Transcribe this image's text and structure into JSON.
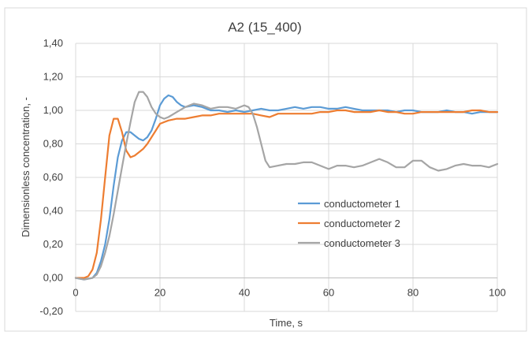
{
  "chart_data": {
    "type": "line",
    "title": "A2 (15_400)",
    "xlabel": "Time, s",
    "ylabel": "Dimensionless concentration, -",
    "xlim": [
      0,
      100
    ],
    "ylim": [
      -0.2,
      1.4
    ],
    "x_ticks": [
      "0",
      "20",
      "40",
      "60",
      "80",
      "100"
    ],
    "y_ticks": [
      "-0,20",
      "0,00",
      "0,20",
      "0,40",
      "0,60",
      "0,80",
      "1,00",
      "1,20",
      "1,40"
    ],
    "grid": true,
    "legend_position": "right-middle",
    "series": [
      {
        "name": "conductometer 1",
        "color": "#5b9bd5",
        "x": [
          0,
          2,
          4,
          5,
          6,
          7,
          8,
          9,
          10,
          11,
          12,
          13,
          14,
          15,
          16,
          17,
          18,
          19,
          20,
          21,
          22,
          23,
          24,
          25,
          26,
          28,
          30,
          32,
          34,
          36,
          38,
          40,
          42,
          44,
          46,
          48,
          50,
          52,
          54,
          56,
          58,
          60,
          62,
          64,
          66,
          68,
          70,
          72,
          74,
          76,
          78,
          80,
          82,
          84,
          86,
          88,
          90,
          92,
          94,
          96,
          98,
          100
        ],
        "y": [
          0.0,
          -0.01,
          0.0,
          0.03,
          0.1,
          0.2,
          0.35,
          0.55,
          0.72,
          0.82,
          0.87,
          0.87,
          0.85,
          0.83,
          0.82,
          0.84,
          0.88,
          0.95,
          1.03,
          1.07,
          1.09,
          1.08,
          1.05,
          1.03,
          1.02,
          1.03,
          1.02,
          1.0,
          1.0,
          0.99,
          1.0,
          0.99,
          1.0,
          1.01,
          1.0,
          1.0,
          1.01,
          1.02,
          1.01,
          1.02,
          1.02,
          1.01,
          1.01,
          1.02,
          1.01,
          1.0,
          1.0,
          1.0,
          1.0,
          0.99,
          1.0,
          1.0,
          0.99,
          0.99,
          0.99,
          1.0,
          0.99,
          0.99,
          0.98,
          0.99,
          0.99,
          0.99
        ]
      },
      {
        "name": "conductometer 2",
        "color": "#ed7d31",
        "x": [
          0,
          2,
          3,
          4,
          5,
          6,
          7,
          8,
          9,
          10,
          11,
          12,
          13,
          14,
          15,
          16,
          17,
          18,
          19,
          20,
          21,
          22,
          24,
          26,
          28,
          30,
          32,
          34,
          36,
          38,
          40,
          42,
          44,
          46,
          48,
          50,
          52,
          54,
          56,
          58,
          60,
          62,
          64,
          66,
          68,
          70,
          72,
          74,
          76,
          78,
          80,
          82,
          84,
          86,
          88,
          90,
          92,
          94,
          96,
          98,
          100
        ],
        "y": [
          0.0,
          0.0,
          0.01,
          0.05,
          0.15,
          0.35,
          0.6,
          0.85,
          0.95,
          0.95,
          0.87,
          0.76,
          0.72,
          0.73,
          0.75,
          0.77,
          0.8,
          0.84,
          0.88,
          0.92,
          0.93,
          0.94,
          0.95,
          0.95,
          0.96,
          0.97,
          0.97,
          0.98,
          0.98,
          0.98,
          0.98,
          0.98,
          0.97,
          0.96,
          0.98,
          0.98,
          0.98,
          0.98,
          0.98,
          0.99,
          0.99,
          1.0,
          1.0,
          0.99,
          0.99,
          0.99,
          1.0,
          0.99,
          0.99,
          0.98,
          0.98,
          0.99,
          0.99,
          0.99,
          0.99,
          0.99,
          0.99,
          1.0,
          1.0,
          0.99,
          0.99
        ]
      },
      {
        "name": "conductometer 3",
        "color": "#a5a5a5",
        "x": [
          0,
          2,
          4,
          5,
          6,
          7,
          8,
          9,
          10,
          11,
          12,
          13,
          14,
          15,
          16,
          17,
          18,
          19,
          20,
          21,
          22,
          24,
          26,
          28,
          30,
          32,
          34,
          36,
          38,
          40,
          41,
          42,
          43,
          44,
          45,
          46,
          48,
          50,
          52,
          54,
          56,
          58,
          60,
          62,
          64,
          66,
          68,
          70,
          72,
          74,
          76,
          78,
          80,
          82,
          84,
          86,
          88,
          90,
          92,
          94,
          96,
          98,
          100
        ],
        "y": [
          0.0,
          -0.01,
          0.0,
          0.02,
          0.07,
          0.15,
          0.25,
          0.38,
          0.52,
          0.66,
          0.8,
          0.93,
          1.05,
          1.11,
          1.11,
          1.08,
          1.02,
          0.98,
          0.96,
          0.95,
          0.96,
          0.99,
          1.02,
          1.04,
          1.03,
          1.01,
          1.02,
          1.02,
          1.01,
          1.03,
          1.02,
          0.98,
          0.9,
          0.8,
          0.7,
          0.66,
          0.67,
          0.68,
          0.68,
          0.69,
          0.69,
          0.67,
          0.65,
          0.67,
          0.67,
          0.66,
          0.67,
          0.69,
          0.71,
          0.69,
          0.66,
          0.66,
          0.7,
          0.7,
          0.66,
          0.64,
          0.65,
          0.67,
          0.68,
          0.67,
          0.67,
          0.66,
          0.68
        ]
      }
    ]
  }
}
